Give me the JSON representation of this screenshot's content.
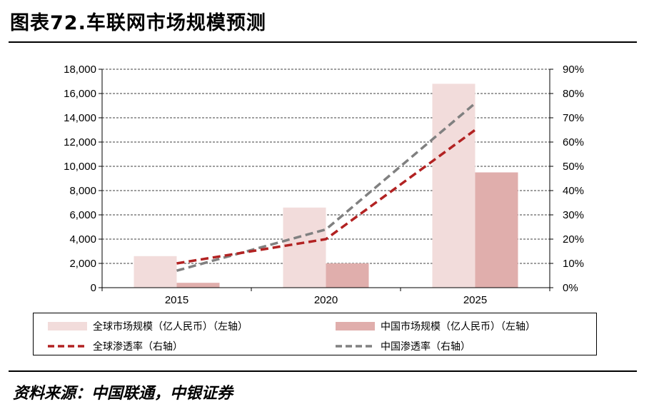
{
  "title": "图表72.车联网市场规模预测",
  "source": "资料来源：中国联通，中银证券",
  "colors": {
    "global_bar": "#f2dcdb",
    "china_bar": "#e0aeac",
    "global_line": "#b22222",
    "china_line": "#808080",
    "grid": "#000000"
  },
  "chart_data": {
    "type": "bar",
    "categories": [
      "2015",
      "2020",
      "2025"
    ],
    "series": [
      {
        "name": "全球市场规模（亿人民币）（左轴）",
        "type": "bar",
        "axis": "left",
        "values": [
          2600,
          6600,
          16800
        ]
      },
      {
        "name": "中国市场规模（亿人民币）（左轴）",
        "type": "bar",
        "axis": "left",
        "values": [
          400,
          2000,
          9500
        ]
      },
      {
        "name": "全球渗透率（右轴）",
        "type": "line",
        "axis": "right",
        "style": "dashed",
        "values": [
          10,
          20,
          65
        ]
      },
      {
        "name": "中国渗透率（右轴）",
        "type": "line",
        "axis": "right",
        "style": "dashed",
        "values": [
          7,
          24,
          76
        ]
      }
    ],
    "y_left": {
      "min": 0,
      "max": 18000,
      "step": 2000,
      "ticks": [
        "0",
        "2,000",
        "4,000",
        "6,000",
        "8,000",
        "10,000",
        "12,000",
        "14,000",
        "16,000",
        "18,000"
      ]
    },
    "y_right": {
      "min": 0,
      "max": 90,
      "step": 10,
      "ticks": [
        "0%",
        "10%",
        "20%",
        "30%",
        "40%",
        "50%",
        "60%",
        "70%",
        "80%",
        "90%"
      ]
    },
    "grid": "horizontal dashed",
    "legend": "bottom"
  }
}
